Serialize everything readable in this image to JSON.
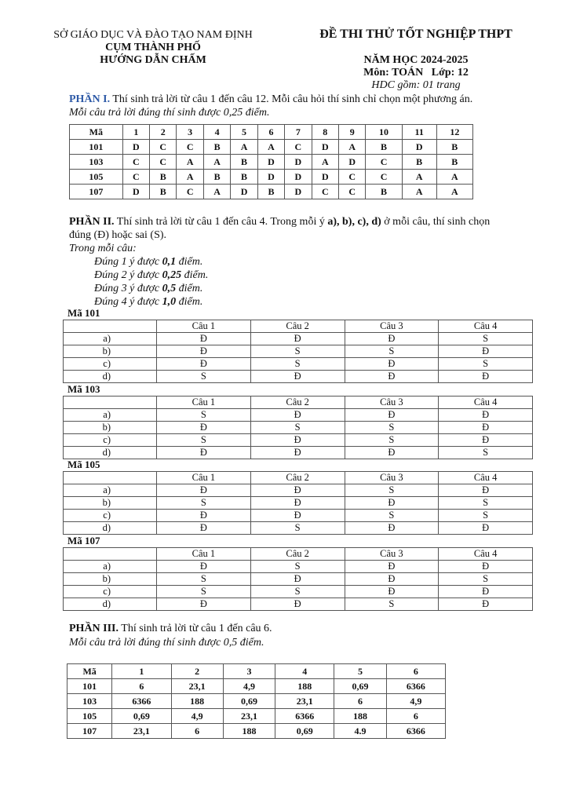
{
  "header": {
    "department": "SỞ GIÁO DỤC VÀ ĐÀO TẠO NAM ĐỊNH",
    "cluster": "CỤM THÀNH PHỐ",
    "doc_type": "HƯỚNG DẪN CHẤM",
    "exam_title": "ĐỀ THI THỬ TỐT NGHIỆP THPT",
    "school_year": "NĂM HỌC 2024-2025",
    "subject": "Môn: TOÁN   Lớp: 12",
    "pages": "HDC gồm: 01 trang"
  },
  "part1": {
    "label": "PHẦN I.",
    "instruction": " Thí sinh trả lời từ câu 1 đến câu 12. Mỗi câu hỏi thí sinh chỉ chọn một phương án.",
    "scoring": "Mỗi câu trả lời đúng thí sinh được 0,25 điểm.",
    "headers": [
      "Mã",
      "1",
      "2",
      "3",
      "4",
      "5",
      "6",
      "7",
      "8",
      "9",
      "10",
      "11",
      "12"
    ],
    "rows": [
      [
        "101",
        "D",
        "C",
        "C",
        "B",
        "A",
        "A",
        "C",
        "D",
        "A",
        "B",
        "D",
        "B"
      ],
      [
        "103",
        "C",
        "C",
        "A",
        "A",
        "B",
        "D",
        "D",
        "A",
        "D",
        "C",
        "B",
        "B"
      ],
      [
        "105",
        "C",
        "B",
        "A",
        "B",
        "B",
        "D",
        "D",
        "D",
        "C",
        "C",
        "A",
        "A"
      ],
      [
        "107",
        "D",
        "B",
        "C",
        "A",
        "D",
        "B",
        "D",
        "C",
        "C",
        "B",
        "A",
        "A"
      ]
    ]
  },
  "part2": {
    "label": "PHẦN II.",
    "instruction_a": " Thí sinh trả lời từ câu 1 đến câu 4. Trong mỗi ý ",
    "instruction_b": "a), b), c), d)",
    "instruction_c": " ở mỗi câu, thí sinh chọn",
    "instruction_line2": "đúng (Đ) hoặc sai (S).",
    "per_question": "Trong mỗi câu:",
    "rules": [
      {
        "pre": "Đúng 1 ý được ",
        "pts": "0,1",
        "post": " điểm."
      },
      {
        "pre": "Đúng 2 ý được ",
        "pts": "0,25",
        "post": " điểm."
      },
      {
        "pre": "Đúng 3 ý được ",
        "pts": "0,5",
        "post": " điểm."
      },
      {
        "pre": "Đúng 4 ý được ",
        "pts": "1,0",
        "post": " điểm."
      }
    ],
    "headers": [
      "",
      "Câu 1",
      "Câu 2",
      "Câu 3",
      "Câu 4"
    ],
    "codes": [
      {
        "title": "Mã 101",
        "rows": [
          [
            "a)",
            "Đ",
            "Đ",
            "Đ",
            "S"
          ],
          [
            "b)",
            "Đ",
            "S",
            "S",
            "Đ"
          ],
          [
            "c)",
            "Đ",
            "S",
            "Đ",
            "S"
          ],
          [
            "d)",
            "S",
            "Đ",
            "Đ",
            "Đ"
          ]
        ]
      },
      {
        "title": "Mã 103",
        "rows": [
          [
            "a)",
            "S",
            "Đ",
            "Đ",
            "Đ"
          ],
          [
            "b)",
            "Đ",
            "S",
            "S",
            "Đ"
          ],
          [
            "c)",
            "S",
            "Đ",
            "S",
            "Đ"
          ],
          [
            "d)",
            "Đ",
            "Đ",
            "Đ",
            "S"
          ]
        ]
      },
      {
        "title": "Mã 105",
        "rows": [
          [
            "a)",
            "Đ",
            "Đ",
            "S",
            "Đ"
          ],
          [
            "b)",
            "S",
            "Đ",
            "Đ",
            "S"
          ],
          [
            "c)",
            "Đ",
            "Đ",
            "S",
            "S"
          ],
          [
            "d)",
            "Đ",
            "S",
            "Đ",
            "Đ"
          ]
        ]
      },
      {
        "title": "Mã 107",
        "rows": [
          [
            "a)",
            "Đ",
            "S",
            "Đ",
            "Đ"
          ],
          [
            "b)",
            "S",
            "Đ",
            "Đ",
            "S"
          ],
          [
            "c)",
            "S",
            "S",
            "Đ",
            "Đ"
          ],
          [
            "d)",
            "Đ",
            "Đ",
            "S",
            "Đ"
          ]
        ]
      }
    ]
  },
  "part3": {
    "label": "PHẦN III.",
    "instruction": " Thí sinh trả lời từ câu 1 đến câu 6.",
    "scoring": "Mỗi câu trả lời đúng thí sinh được 0,5 điểm.",
    "headers": [
      "Mã",
      "1",
      "2",
      "3",
      "4",
      "5",
      "6"
    ],
    "rows": [
      [
        "101",
        "6",
        "23,1",
        "4,9",
        "188",
        "0,69",
        "6366"
      ],
      [
        "103",
        "6366",
        "188",
        "0,69",
        "23,1",
        "6",
        "4,9"
      ],
      [
        "105",
        "0,69",
        "4,9",
        "23,1",
        "6366",
        "188",
        "6"
      ],
      [
        "107",
        "23,1",
        "6",
        "188",
        "0,69",
        "4.9",
        "6366"
      ]
    ]
  }
}
